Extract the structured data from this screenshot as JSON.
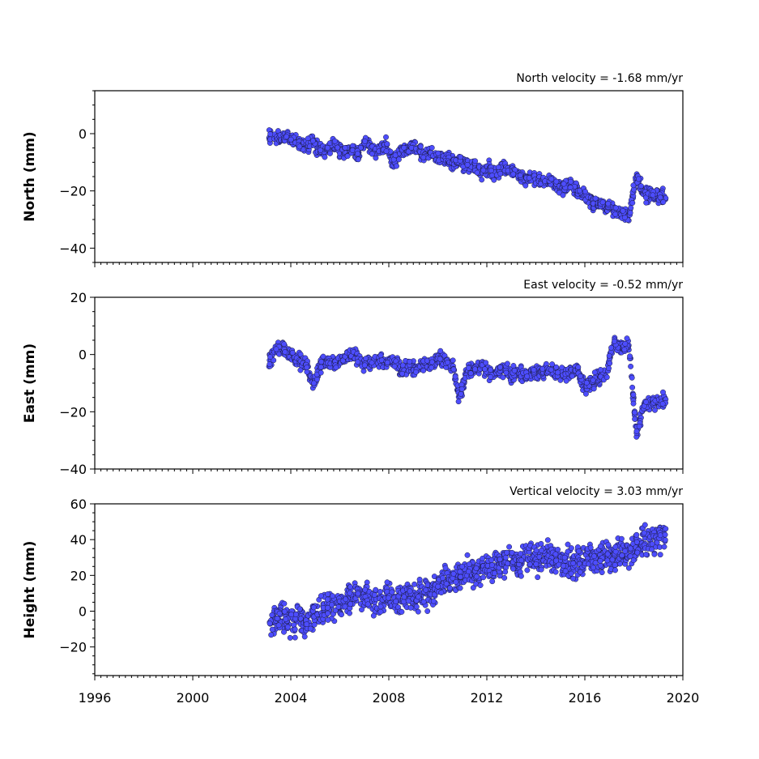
{
  "chart_data": [
    {
      "type": "scatter",
      "title": "North velocity = -1.68 mm/yr",
      "ylabel": "North (mm)",
      "xlim": [
        1996,
        2020
      ],
      "ylim": [
        -45,
        15
      ],
      "yticks": [
        -40,
        -20,
        0
      ],
      "marker_color": "#4d4dff",
      "series": [
        {
          "x": [
            2003.1,
            2003.4,
            2003.7,
            2004.0,
            2004.3,
            2004.6,
            2004.9,
            2005.2,
            2005.5,
            2005.8,
            2006.1,
            2006.4,
            2006.7,
            2007.0,
            2007.3,
            2007.6,
            2007.9,
            2008.2,
            2008.5,
            2008.8,
            2009.1,
            2009.4,
            2009.7,
            2010.0,
            2010.3,
            2010.6,
            2010.9,
            2011.2,
            2011.5,
            2011.8,
            2012.1,
            2012.4,
            2012.7,
            2013.0,
            2013.3,
            2013.6,
            2013.9,
            2014.2,
            2014.5,
            2014.8,
            2015.1,
            2015.4,
            2015.7,
            2016.0,
            2016.3,
            2016.6,
            2016.9,
            2017.2,
            2017.5,
            2017.8,
            2018.1,
            2018.4,
            2018.7,
            2019.0
          ],
          "y": [
            -1,
            -2,
            -1,
            -2,
            -3,
            -4,
            -3,
            -6,
            -5,
            -4,
            -6,
            -5,
            -7,
            -3,
            -5,
            -6,
            -4,
            -10,
            -6,
            -5,
            -4,
            -8,
            -7,
            -8,
            -9,
            -10,
            -9,
            -11,
            -12,
            -13,
            -12,
            -14,
            -12,
            -13,
            -15,
            -16,
            -15,
            -17,
            -16,
            -18,
            -19,
            -18,
            -20,
            -22,
            -24,
            -25,
            -26,
            -27,
            -28,
            -29,
            -14,
            -22,
            -21,
            -22
          ]
        }
      ]
    },
    {
      "type": "scatter",
      "title": "East velocity = -0.52 mm/yr",
      "ylabel": "East (mm)",
      "xlim": [
        1996,
        2020
      ],
      "ylim": [
        -40,
        20
      ],
      "yticks": [
        -40,
        -20,
        0,
        20
      ],
      "marker_color": "#4d4dff",
      "series": [
        {
          "x": [
            2003.1,
            2003.4,
            2003.7,
            2004.0,
            2004.3,
            2004.6,
            2004.9,
            2005.2,
            2005.5,
            2005.8,
            2006.1,
            2006.4,
            2006.7,
            2007.0,
            2007.3,
            2007.6,
            2007.9,
            2008.2,
            2008.5,
            2008.8,
            2009.1,
            2009.4,
            2009.7,
            2010.0,
            2010.3,
            2010.6,
            2010.9,
            2011.2,
            2011.5,
            2011.8,
            2012.1,
            2012.4,
            2012.7,
            2013.0,
            2013.3,
            2013.6,
            2013.9,
            2014.2,
            2014.5,
            2014.8,
            2015.1,
            2015.4,
            2015.7,
            2016.0,
            2016.3,
            2016.6,
            2016.9,
            2017.2,
            2017.5,
            2017.8,
            2018.1,
            2018.4,
            2018.7,
            2019.0
          ],
          "y": [
            -2,
            1,
            2,
            0,
            -2,
            -3,
            -10,
            -4,
            -2,
            -3,
            -1,
            0,
            -1,
            -4,
            -3,
            -2,
            -3,
            -2,
            -5,
            -4,
            -6,
            -3,
            -4,
            -1,
            -2,
            -4,
            -15,
            -5,
            -5,
            -4,
            -7,
            -6,
            -5,
            -7,
            -6,
            -8,
            -6,
            -6,
            -5,
            -6,
            -7,
            -6,
            -5,
            -12,
            -9,
            -8,
            -6,
            5,
            2,
            3,
            -28,
            -18,
            -17,
            -16
          ]
        }
      ]
    },
    {
      "type": "scatter",
      "title": "Vertical velocity = 3.03 mm/yr",
      "ylabel": "Height (mm)",
      "xlim": [
        1996,
        2020
      ],
      "ylim": [
        -36,
        60
      ],
      "yticks": [
        -20,
        0,
        20,
        40,
        60
      ],
      "xticks": [
        1996,
        2000,
        2004,
        2008,
        2012,
        2016,
        2020
      ],
      "xtick_labels": [
        "1996",
        "2000",
        "2004",
        "2008",
        "2012",
        "2016",
        "2020"
      ],
      "marker_color": "#4d4dff",
      "series": [
        {
          "x": [
            2003.1,
            2003.4,
            2003.7,
            2004.0,
            2004.3,
            2004.6,
            2004.9,
            2005.2,
            2005.5,
            2005.8,
            2006.1,
            2006.4,
            2006.7,
            2007.0,
            2007.3,
            2007.6,
            2007.9,
            2008.2,
            2008.5,
            2008.8,
            2009.1,
            2009.4,
            2009.7,
            2010.0,
            2010.3,
            2010.6,
            2010.9,
            2011.2,
            2011.5,
            2011.8,
            2012.1,
            2012.4,
            2012.7,
            2013.0,
            2013.3,
            2013.6,
            2013.9,
            2014.2,
            2014.5,
            2014.8,
            2015.1,
            2015.4,
            2015.7,
            2016.0,
            2016.3,
            2016.6,
            2016.9,
            2017.2,
            2017.5,
            2017.8,
            2018.1,
            2018.4,
            2018.7,
            2019.0
          ],
          "y": [
            -8,
            -5,
            -3,
            -6,
            -4,
            -8,
            -2,
            0,
            3,
            4,
            5,
            7,
            8,
            10,
            6,
            5,
            8,
            7,
            6,
            9,
            8,
            10,
            12,
            14,
            18,
            17,
            20,
            22,
            21,
            24,
            26,
            25,
            28,
            30,
            27,
            29,
            30,
            28,
            31,
            29,
            27,
            26,
            28,
            27,
            29,
            30,
            28,
            31,
            33,
            32,
            36,
            38,
            40,
            42
          ]
        }
      ]
    }
  ]
}
